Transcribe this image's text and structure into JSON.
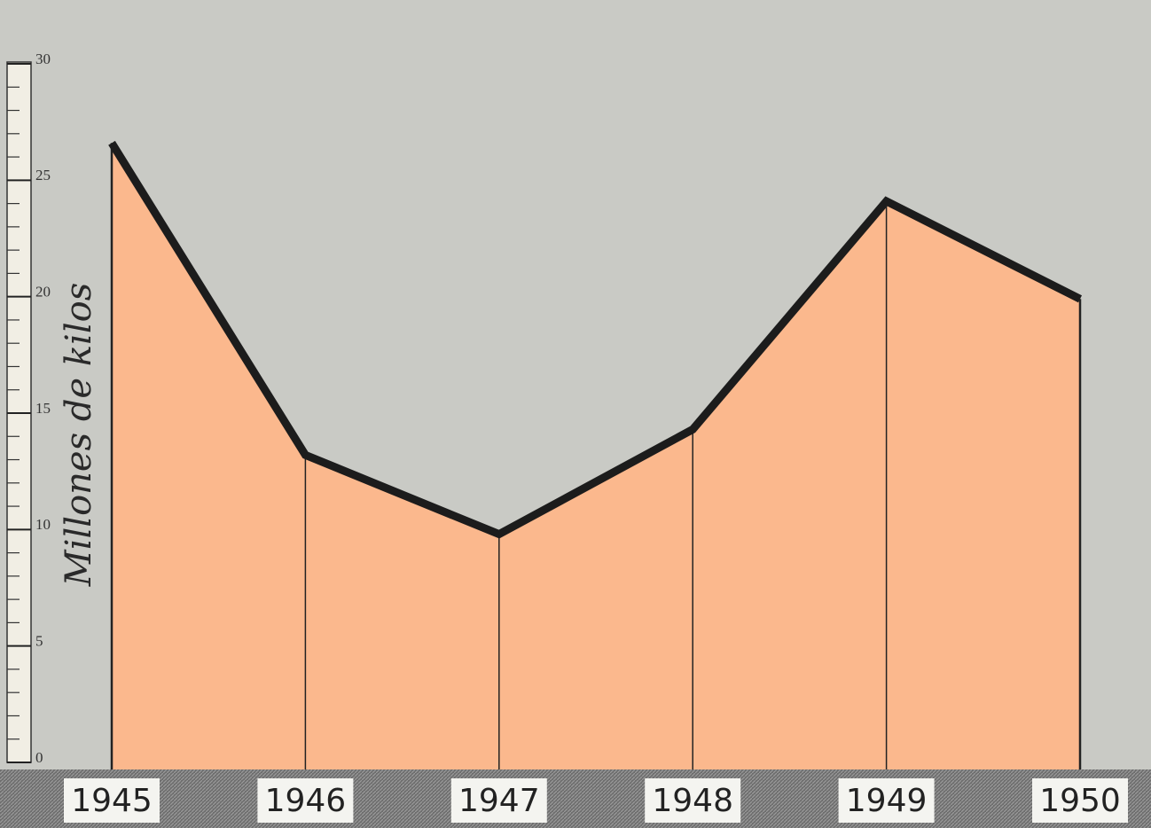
{
  "chart_data": {
    "type": "area",
    "ylabel": "Millones de kilos",
    "categories": [
      "1945",
      "1946",
      "1947",
      "1948",
      "1949",
      "1950"
    ],
    "values": [
      26.6,
      13.2,
      9.8,
      14.3,
      24.1,
      19.9
    ],
    "color": "#fbb88d",
    "line_color": "#1c1c1c",
    "ylim": [
      0,
      30
    ],
    "yticks": [
      0,
      5,
      10,
      15,
      20,
      25,
      30
    ]
  }
}
